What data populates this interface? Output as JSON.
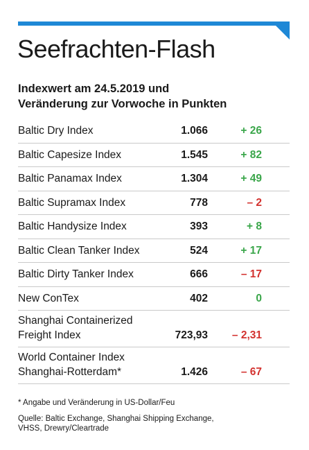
{
  "colors": {
    "accent": "#1e88d6",
    "positive": "#3aa64a",
    "negative": "#d3322f"
  },
  "header": {
    "title": "Seefrachten-Flash"
  },
  "subtitle": {
    "line1": "Indexwert am 24.5.2019 und",
    "line2": "Veränderung zur Vorwoche in Punkten"
  },
  "rows": [
    {
      "name_line1": "Baltic Dry Index",
      "name_line2": "",
      "value": "1.066",
      "change": "+ 26",
      "trend": "pos"
    },
    {
      "name_line1": "Baltic Capesize Index",
      "name_line2": "",
      "value": "1.545",
      "change": "+ 82",
      "trend": "pos"
    },
    {
      "name_line1": "Baltic Panamax Index",
      "name_line2": "",
      "value": "1.304",
      "change": "+ 49",
      "trend": "pos"
    },
    {
      "name_line1": "Baltic Supramax Index",
      "name_line2": "",
      "value": "778",
      "change": "– 2",
      "trend": "neg"
    },
    {
      "name_line1": "Baltic Handysize Index",
      "name_line2": "",
      "value": "393",
      "change": "+ 8",
      "trend": "pos"
    },
    {
      "name_line1": "Baltic Clean Tanker Index",
      "name_line2": "",
      "value": "524",
      "change": "+ 17",
      "trend": "pos"
    },
    {
      "name_line1": "Baltic Dirty Tanker Index",
      "name_line2": "",
      "value": "666",
      "change": "– 17",
      "trend": "neg"
    },
    {
      "name_line1": "New ConTex",
      "name_line2": "",
      "value": "402",
      "change": "0",
      "trend": "zero"
    },
    {
      "name_line1": "Shanghai Containerized",
      "name_line2": "Freight Index",
      "value": "723,93",
      "change": "– 2,31",
      "trend": "neg"
    },
    {
      "name_line1": "World Container Index",
      "name_line2": "Shanghai-Rotterdam*",
      "value": "1.426",
      "change": "– 67",
      "trend": "neg"
    }
  ],
  "footnote": "* Angabe und Veränderung in US-Dollar/Feu",
  "source": {
    "line1": "Quelle: Baltic Exchange, Shanghai Shipping Exchange,",
    "line2": "VHSS, Drewry/Cleartrade"
  }
}
